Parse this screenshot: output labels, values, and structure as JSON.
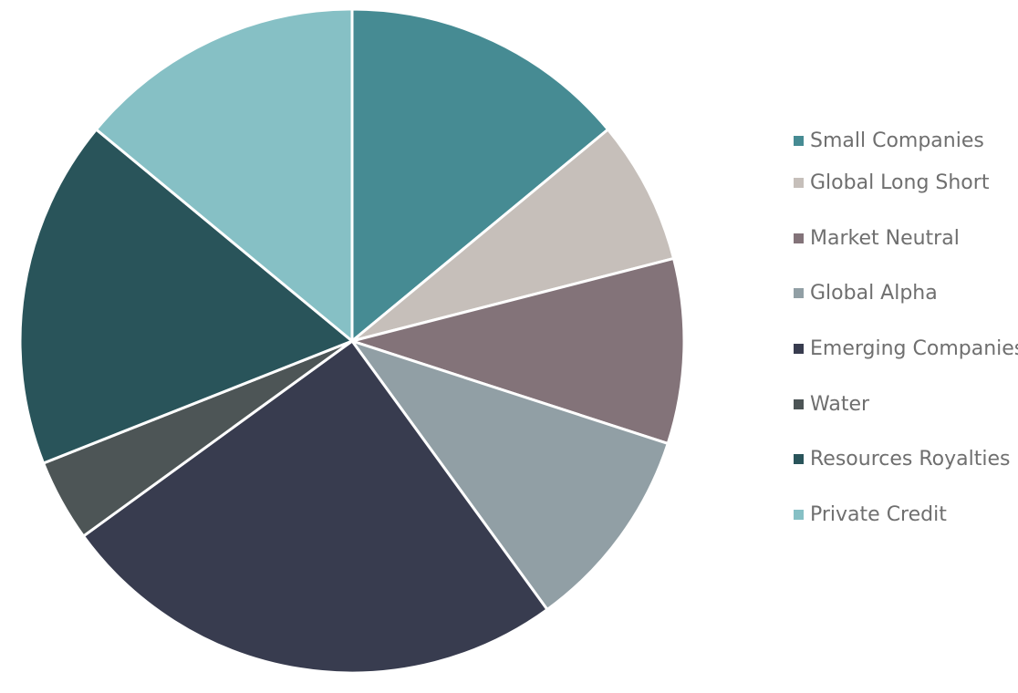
{
  "chart_data": {
    "type": "pie",
    "start": "12 o'clock, clockwise",
    "slices": [
      {
        "label": "Small Companies",
        "value": 14,
        "color": "#468b93"
      },
      {
        "label": "Global Long Short",
        "value": 7,
        "color": "#c6bfba"
      },
      {
        "label": "Market Neutral",
        "value": 9,
        "color": "#837379"
      },
      {
        "label": "Global Alpha",
        "value": 10,
        "color": "#919fa5"
      },
      {
        "label": "Emerging Companies",
        "value": 25,
        "color": "#383c4f"
      },
      {
        "label": "Water",
        "value": 4,
        "color": "#4d5556"
      },
      {
        "label": "Resources Royalties",
        "value": 17,
        "color": "#29545a"
      },
      {
        "label": "Private Credit",
        "value": 14,
        "color": "#86c0c5"
      }
    ],
    "legend": "right"
  }
}
